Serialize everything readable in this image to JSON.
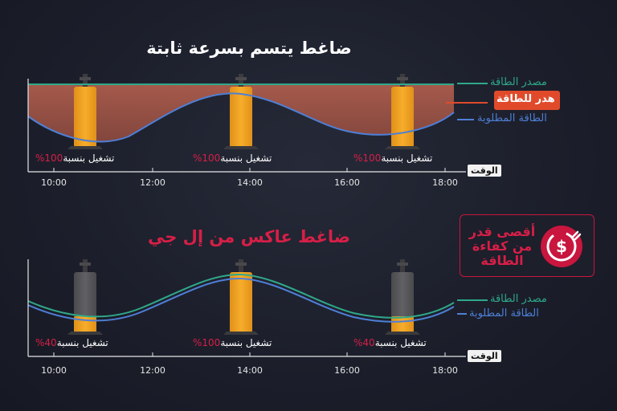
{
  "top": {
    "title": "ضاغط يتسم بسرعة ثابتة",
    "legend": {
      "source": "مصدر الطاقة",
      "waste": "هدر للطاقة",
      "demand": "الطاقة المطلوبة"
    },
    "units": [
      {
        "label": "تشغيل بنسبة",
        "pct": "100%"
      },
      {
        "label": "تشغيل بنسبة",
        "pct": "100%"
      },
      {
        "label": "تشغيل بنسبة",
        "pct": "100%"
      }
    ],
    "axis_label": "الوقت",
    "ticks": [
      "10:00",
      "12:00",
      "14:00",
      "16:00",
      "18:00"
    ]
  },
  "bottom": {
    "title": "ضاغط عاكس من إل جي",
    "legend": {
      "source": "مصدر الطاقة",
      "demand": "الطاقة المطلوبة"
    },
    "units": [
      {
        "label": "تشغيل بنسبة",
        "pct": "40%"
      },
      {
        "label": "تشغيل بنسبة",
        "pct": "100%"
      },
      {
        "label": "تشغيل بنسبة",
        "pct": "40%"
      }
    ],
    "axis_label": "الوقت",
    "ticks": [
      "10:00",
      "12:00",
      "14:00",
      "16:00",
      "18:00"
    ]
  },
  "callout": {
    "text": "أقصى قدر من كفاءة الطاقة",
    "icon": "power-plug-dollar-icon"
  },
  "colors": {
    "source": "#2fa88a",
    "demand": "#4e7fd6",
    "waste": "#e04a2b",
    "compressor_on": "#f5a51f",
    "compressor_off": "#555558",
    "accent": "#d61f47"
  }
}
